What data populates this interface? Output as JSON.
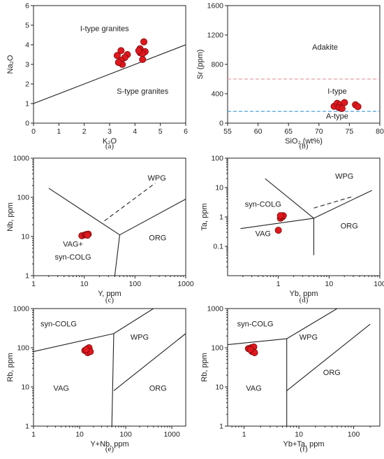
{
  "chart_data": [
    {
      "id": "a",
      "type": "scatter",
      "caption": "(a)",
      "xlabel": "K₂O",
      "ylabel": "Na₂O",
      "xlim": [
        0,
        6
      ],
      "ylim": [
        0,
        6
      ],
      "scale": "linear",
      "xticks": [
        "0",
        "1",
        "2",
        "3",
        "4",
        "5",
        "6"
      ],
      "yticks": [
        "0",
        "1",
        "2",
        "3",
        "4",
        "5",
        "6"
      ],
      "fields": [
        "I-type granites",
        "S-type granites"
      ],
      "lines": [
        [
          [
            0,
            1
          ],
          [
            6,
            4
          ]
        ]
      ],
      "points": [
        [
          3.3,
          3.45
        ],
        [
          3.45,
          3.7
        ],
        [
          3.7,
          3.5
        ],
        [
          3.6,
          3.35
        ],
        [
          3.45,
          3.2
        ],
        [
          3.5,
          3.0
        ],
        [
          3.35,
          3.1
        ],
        [
          4.2,
          3.8
        ],
        [
          4.35,
          4.15
        ],
        [
          4.2,
          3.6
        ],
        [
          4.4,
          3.65
        ],
        [
          4.3,
          3.55
        ],
        [
          4.15,
          3.7
        ],
        [
          4.3,
          3.25
        ]
      ]
    },
    {
      "id": "b",
      "type": "scatter",
      "caption": "(b)",
      "xlabel": "SiO₂ (wt%)",
      "ylabel": "Sr (ppm)",
      "xlim": [
        55,
        80
      ],
      "ylim": [
        0,
        1600
      ],
      "scale": "linear",
      "xticks": [
        "55",
        "60",
        "65",
        "70",
        "75",
        "80"
      ],
      "yticks": [
        "0",
        "400",
        "800",
        "1200",
        "1600"
      ],
      "fields": [
        "Adakite",
        "I-type",
        "A-type"
      ],
      "hlines": [
        {
          "y": 600,
          "color": "#e8a0a8"
        },
        {
          "y": 160,
          "color": "#3a9ad9"
        }
      ],
      "points": [
        [
          72.5,
          230
        ],
        [
          73,
          270
        ],
        [
          73.5,
          250
        ],
        [
          73.3,
          210
        ],
        [
          74.2,
          280
        ],
        [
          76,
          250
        ],
        [
          76.4,
          225
        ],
        [
          73.8,
          200
        ]
      ]
    },
    {
      "id": "c",
      "type": "scatter",
      "caption": "(c)",
      "xlabel": "Y, ppm",
      "ylabel": "Nb, ppm",
      "xlim": [
        1,
        1000
      ],
      "ylim": [
        1,
        1000
      ],
      "scale": "log",
      "xticks": [
        "1",
        "10",
        "100",
        "1000"
      ],
      "yticks": [
        "1",
        "10",
        "100",
        "1000"
      ],
      "fields": [
        "WPG",
        "VAG+",
        "syn-COLG",
        "ORG"
      ],
      "lines": [
        [
          [
            2,
            170
          ],
          [
            50,
            11
          ]
        ],
        [
          [
            50,
            11
          ],
          [
            1000,
            90
          ]
        ],
        [
          [
            50,
            11
          ],
          [
            40,
            1
          ]
        ]
      ],
      "dashed": [
        [
          [
            25,
            25
          ],
          [
            250,
            230
          ]
        ]
      ],
      "points": [
        [
          9,
          10.5
        ],
        [
          10.5,
          11
        ],
        [
          11,
          11.2
        ],
        [
          12,
          11.5
        ],
        [
          11.5,
          10.8
        ]
      ]
    },
    {
      "id": "d",
      "type": "scatter",
      "caption": "(d)",
      "xlabel": "Yb, ppm",
      "ylabel": "Ta, ppm",
      "xlim": [
        0.1,
        100
      ],
      "ylim": [
        0.01,
        100
      ],
      "scale": "log",
      "xticks": [
        "1",
        "10",
        "100"
      ],
      "yticks": [
        "0.1",
        "1",
        "10",
        "100"
      ],
      "fields": [
        "WPG",
        "syn-COLG",
        "VAG",
        "ORG"
      ],
      "lines": [
        [
          [
            0.55,
            20
          ],
          [
            5,
            0.9
          ]
        ],
        [
          [
            0.18,
            0.4
          ],
          [
            5,
            0.9
          ]
        ],
        [
          [
            5,
            0.9
          ],
          [
            5,
            0.05
          ]
        ],
        [
          [
            5,
            0.9
          ],
          [
            70,
            8
          ]
        ]
      ],
      "dashed": [
        [
          [
            5,
            2
          ],
          [
            30,
            5
          ]
        ]
      ],
      "points": [
        [
          1.0,
          0.35
        ],
        [
          1.1,
          0.9
        ],
        [
          1.15,
          1.05
        ],
        [
          1.2,
          1.0
        ],
        [
          1.25,
          1.1
        ],
        [
          1.1,
          1.1
        ]
      ]
    },
    {
      "id": "e",
      "type": "scatter",
      "caption": "(e)",
      "xlabel": "Y+Nb, ppm",
      "ylabel": "Rb, ppm",
      "xlim": [
        1,
        2000
      ],
      "ylim": [
        1,
        1000
      ],
      "scale": "log",
      "xticks": [
        "1",
        "10",
        "100",
        "1000"
      ],
      "yticks": [
        "1",
        "10",
        "100",
        "1000"
      ],
      "fields": [
        "syn-COLG",
        "WPG",
        "VAG",
        "ORG"
      ],
      "lines": [
        [
          [
            1,
            80
          ],
          [
            55,
            230
          ]
        ],
        [
          [
            55,
            230
          ],
          [
            400,
            1000
          ]
        ],
        [
          [
            55,
            230
          ],
          [
            50,
            1
          ]
        ],
        [
          [
            55,
            8
          ],
          [
            2000,
            230
          ]
        ]
      ],
      "points": [
        [
          13,
          85
        ],
        [
          15,
          95
        ],
        [
          16,
          100
        ],
        [
          15,
          75
        ],
        [
          17,
          80
        ],
        [
          14,
          90
        ]
      ]
    },
    {
      "id": "f",
      "type": "scatter",
      "caption": "(f)",
      "xlabel": "Yb+Ta, ppm",
      "ylabel": "Rb, ppm",
      "xlim": [
        0.5,
        300
      ],
      "ylim": [
        1,
        1000
      ],
      "scale": "log",
      "xticks": [
        "1",
        "10",
        "100"
      ],
      "yticks": [
        "1",
        "10",
        "100",
        "1000"
      ],
      "fields": [
        "syn-COLG",
        "WPG",
        "VAG",
        "ORG"
      ],
      "lines": [
        [
          [
            0.5,
            120
          ],
          [
            6,
            170
          ]
        ],
        [
          [
            6,
            170
          ],
          [
            50,
            1000
          ]
        ],
        [
          [
            6,
            170
          ],
          [
            6,
            1
          ]
        ],
        [
          [
            6,
            8
          ],
          [
            200,
            400
          ]
        ]
      ],
      "points": [
        [
          1.2,
          95
        ],
        [
          1.35,
          100
        ],
        [
          1.5,
          105
        ],
        [
          1.4,
          80
        ],
        [
          1.55,
          75
        ],
        [
          1.3,
          90
        ]
      ]
    }
  ]
}
